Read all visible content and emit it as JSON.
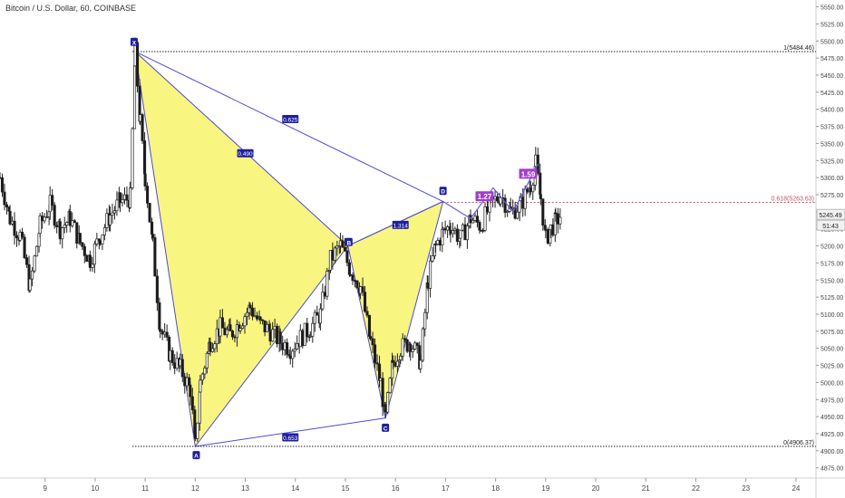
{
  "symbol_title": "Bitcoin / U.S. Dollar, 60, COINBASE",
  "colors": {
    "up": "#3a3a3a",
    "down": "#1a1a1a",
    "pattern_fill": "#f7f36a",
    "pattern_line": "#4b4bd6",
    "label_bg": "#1f1f9e",
    "fib_label_bg": "#a23ec9",
    "fib_line": "#a23ec9",
    "axis_text": "#444444",
    "price_tag": "#f2f2f2"
  },
  "chart_data": {
    "type": "candlestick",
    "x_ticks": [
      "9",
      "10",
      "11",
      "12",
      "13",
      "14",
      "15",
      "16",
      "17",
      "18",
      "19",
      "20",
      "21",
      "22",
      "23",
      "24"
    ],
    "x_tick_days": [
      9,
      10,
      11,
      12,
      13,
      14,
      15,
      16,
      17,
      18,
      19,
      20,
      21,
      22,
      23,
      24
    ],
    "y_ticks": [
      4875,
      4900,
      4925,
      4950,
      4975,
      5000,
      5025,
      5050,
      5075,
      5100,
      5125,
      5150,
      5175,
      5200,
      5225,
      5250,
      5275,
      5300,
      5325,
      5350,
      5375,
      5400,
      5425,
      5450,
      5475,
      5500,
      5525,
      5550
    ],
    "y_tick_labels": [
      "4875.00",
      "4900.00",
      "4925.00",
      "4950.00",
      "4975.00",
      "5000.00",
      "5025.00",
      "5050.00",
      "5075.00",
      "5100.00",
      "5125.00",
      "5150.00",
      "5175.00",
      "5200.00",
      "5225.00",
      "5250.00",
      "5275.00",
      "5300.00",
      "5325.00",
      "5350.00",
      "5375.00",
      "5400.00",
      "5425.00",
      "5450.00",
      "5475.00",
      "5500.00",
      "5525.00",
      "5550.00"
    ],
    "ylim": [
      4860,
      5560
    ],
    "xlim": [
      8.1,
      24.4
    ],
    "last_price": "5245.49",
    "countdown": "51:43",
    "candles_close_path": [
      [
        8.1,
        5300
      ],
      [
        8.3,
        5240
      ],
      [
        8.5,
        5215
      ],
      [
        8.7,
        5140
      ],
      [
        8.9,
        5230
      ],
      [
        9.1,
        5260
      ],
      [
        9.3,
        5225
      ],
      [
        9.5,
        5240
      ],
      [
        9.7,
        5205
      ],
      [
        9.9,
        5180
      ],
      [
        10.1,
        5215
      ],
      [
        10.3,
        5245
      ],
      [
        10.5,
        5265
      ],
      [
        10.7,
        5270
      ],
      [
        10.8,
        5484
      ],
      [
        10.9,
        5380
      ],
      [
        11.0,
        5300
      ],
      [
        11.15,
        5200
      ],
      [
        11.3,
        5080
      ],
      [
        11.5,
        5040
      ],
      [
        11.7,
        5020
      ],
      [
        11.9,
        4990
      ],
      [
        12.0,
        4906
      ],
      [
        12.1,
        5000
      ],
      [
        12.3,
        5060
      ],
      [
        12.5,
        5080
      ],
      [
        12.7,
        5070
      ],
      [
        12.9,
        5090
      ],
      [
        13.1,
        5110
      ],
      [
        13.3,
        5085
      ],
      [
        13.5,
        5075
      ],
      [
        13.7,
        5060
      ],
      [
        13.9,
        5050
      ],
      [
        14.1,
        5065
      ],
      [
        14.3,
        5080
      ],
      [
        14.5,
        5100
      ],
      [
        14.7,
        5180
      ],
      [
        14.9,
        5200
      ],
      [
        15.1,
        5165
      ],
      [
        15.3,
        5140
      ],
      [
        15.5,
        5060
      ],
      [
        15.7,
        5000
      ],
      [
        15.8,
        4948
      ],
      [
        15.95,
        5030
      ],
      [
        16.1,
        5050
      ],
      [
        16.3,
        5060
      ],
      [
        16.5,
        5030
      ],
      [
        16.65,
        5150
      ],
      [
        16.8,
        5200
      ],
      [
        16.95,
        5220
      ],
      [
        17.1,
        5230
      ],
      [
        17.3,
        5210
      ],
      [
        17.5,
        5240
      ],
      [
        17.7,
        5230
      ],
      [
        17.9,
        5260
      ],
      [
        18.1,
        5275
      ],
      [
        18.3,
        5250
      ],
      [
        18.5,
        5260
      ],
      [
        18.7,
        5290
      ],
      [
        18.8,
        5320
      ],
      [
        18.9,
        5270
      ],
      [
        19.0,
        5210
      ],
      [
        19.1,
        5225
      ],
      [
        19.2,
        5235
      ],
      [
        19.3,
        5245
      ]
    ],
    "harmonic_pattern": {
      "X": [
        10.8,
        5484.46
      ],
      "A": [
        12.0,
        4906.37
      ],
      "B": [
        15.05,
        5200
      ],
      "C": [
        15.8,
        4948
      ],
      "D": [
        16.95,
        5265
      ],
      "labels": [
        {
          "text": "X",
          "at": [
            10.78,
            5498
          ]
        },
        {
          "text": "A",
          "at": [
            12.02,
            4893
          ]
        },
        {
          "text": "B",
          "at": [
            15.07,
            5205
          ]
        },
        {
          "text": "C",
          "at": [
            15.8,
            4933
          ]
        },
        {
          "text": "D",
          "at": [
            16.95,
            5280
          ]
        }
      ],
      "ratios": [
        {
          "text": "0.625",
          "at": [
            13.9,
            5385
          ]
        },
        {
          "text": "0.490",
          "at": [
            13.0,
            5335
          ]
        },
        {
          "text": "1.314",
          "at": [
            16.1,
            5230
          ]
        },
        {
          "text": "0.653",
          "at": [
            13.9,
            4919
          ]
        }
      ]
    },
    "fib_extension": {
      "path": [
        [
          16.95,
          5265
        ],
        [
          17.5,
          5240
        ],
        [
          17.95,
          5285
        ],
        [
          18.35,
          5250
        ],
        [
          18.85,
          5320
        ]
      ],
      "labels": [
        {
          "text": "1.27",
          "at": [
            17.78,
            5272
          ]
        },
        {
          "text": "1.59",
          "at": [
            18.65,
            5305
          ]
        }
      ]
    },
    "levels": [
      {
        "text": "1(5484.46)",
        "value": 5484.46,
        "style": "dotted-black"
      },
      {
        "text": "0.618(5263.63)",
        "value": 5263.63,
        "style": "dotted-red"
      },
      {
        "text": "0(4906.37)",
        "value": 4906.37,
        "style": "dotted-black"
      }
    ]
  }
}
